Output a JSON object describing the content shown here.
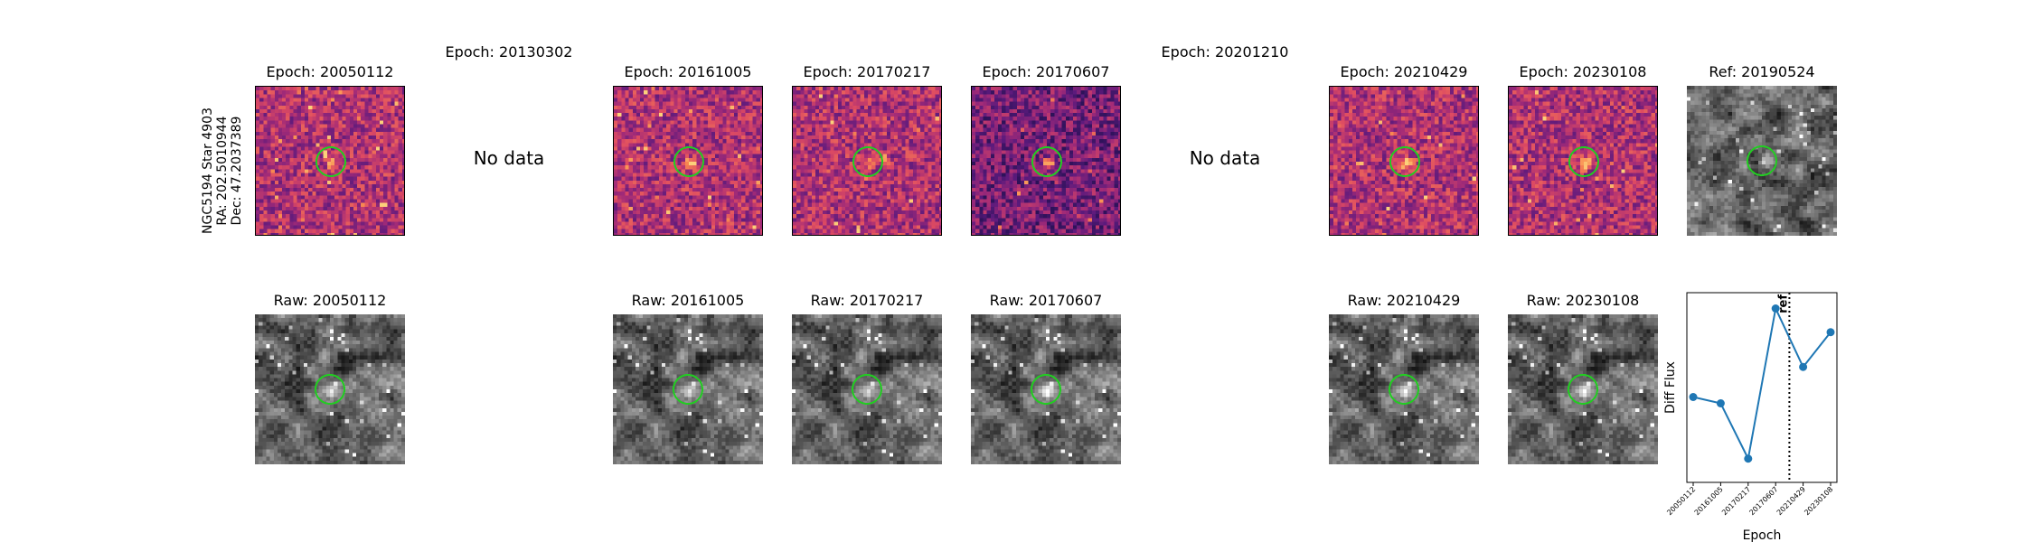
{
  "star_info": {
    "line1": "NGC5194 Star 4903",
    "line2": "RA: 202.5010944",
    "line3": "Dec: 47.2037389"
  },
  "colors": {
    "aperture": "#22cc22",
    "series": "#1f77b4",
    "diff_cmap": [
      "#1a0e4a",
      "#5b1a7c",
      "#a02a78",
      "#dd4a62",
      "#f98a50",
      "#fcd07a"
    ],
    "raw_cmap": [
      "#000000",
      "#ffffff"
    ]
  },
  "diff_row": [
    {
      "title": "Epoch: 20050112",
      "has_data": true,
      "nodata_text": ""
    },
    {
      "title": "Epoch: 20130302",
      "has_data": false,
      "nodata_text": "No data"
    },
    {
      "title": "Epoch: 20161005",
      "has_data": true,
      "nodata_text": ""
    },
    {
      "title": "Epoch: 20170217",
      "has_data": true,
      "nodata_text": ""
    },
    {
      "title": "Epoch: 20170607",
      "has_data": true,
      "nodata_text": ""
    },
    {
      "title": "Epoch: 20201210",
      "has_data": false,
      "nodata_text": "No data"
    },
    {
      "title": "Epoch: 20210429",
      "has_data": true,
      "nodata_text": ""
    },
    {
      "title": "Epoch: 20230108",
      "has_data": true,
      "nodata_text": ""
    },
    {
      "title": "Ref: 20190524",
      "has_data": true,
      "nodata_text": ""
    }
  ],
  "raw_row": [
    {
      "title": "Raw: 20050112"
    },
    {
      "title": ""
    },
    {
      "title": "Raw: 20161005"
    },
    {
      "title": "Raw: 20170217"
    },
    {
      "title": "Raw: 20170607"
    },
    {
      "title": ""
    },
    {
      "title": "Raw: 20210429"
    },
    {
      "title": "Raw: 20230108"
    }
  ],
  "chart_data": {
    "type": "line",
    "title": "",
    "xlabel": "Epoch",
    "ylabel": "Diff Flux",
    "categories": [
      "20050112",
      "20161005",
      "20170217",
      "20170607",
      "20210429",
      "20230108"
    ],
    "series": [
      {
        "values": [
          0.44,
          0.4,
          0.05,
          1.0,
          0.63,
          0.85
        ]
      }
    ],
    "ylim": [
      -0.1,
      1.1
    ],
    "ref_line": {
      "label": "ref",
      "position_between": [
        "20170607",
        "20210429"
      ]
    },
    "grid": false,
    "legend": "none"
  }
}
